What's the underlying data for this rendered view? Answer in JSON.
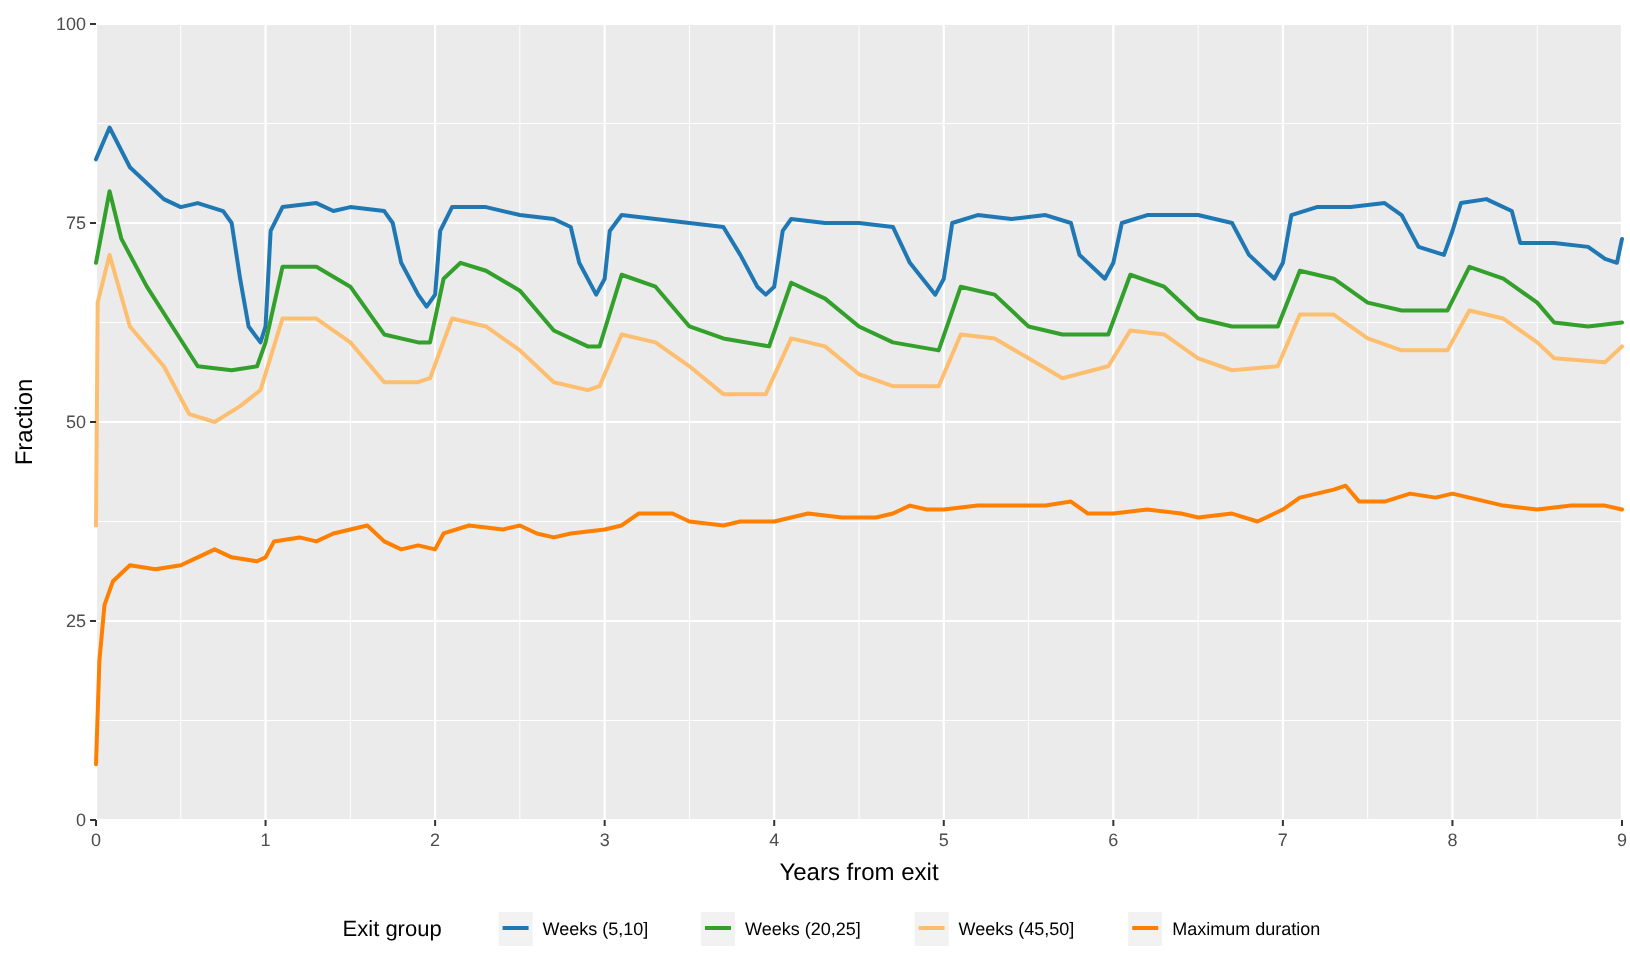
{
  "chart_data": {
    "type": "line",
    "xlabel": "Years from exit",
    "ylabel": "Fraction",
    "legend_title": "Exit group",
    "legend": "bottom",
    "grid": true,
    "xlim": [
      0,
      9
    ],
    "xticks": [
      0,
      1,
      2,
      3,
      4,
      5,
      6,
      7,
      8,
      9
    ],
    "ylim": [
      0,
      100
    ],
    "yticks": [
      0,
      25,
      50,
      75,
      100
    ],
    "series": [
      {
        "name": "Weeks (5,10]",
        "color": "#1f78b4",
        "x": [
          0,
          0.08,
          0.2,
          0.4,
          0.5,
          0.6,
          0.75,
          0.8,
          0.85,
          0.9,
          0.97,
          1.0,
          1.03,
          1.1,
          1.3,
          1.4,
          1.5,
          1.7,
          1.75,
          1.8,
          1.9,
          1.95,
          2.0,
          2.03,
          2.1,
          2.3,
          2.5,
          2.7,
          2.8,
          2.85,
          2.95,
          3.0,
          3.03,
          3.1,
          3.3,
          3.5,
          3.7,
          3.8,
          3.9,
          3.95,
          4.0,
          4.05,
          4.1,
          4.3,
          4.5,
          4.7,
          4.8,
          4.95,
          5.0,
          5.05,
          5.2,
          5.4,
          5.6,
          5.75,
          5.8,
          5.95,
          6.0,
          6.05,
          6.2,
          6.5,
          6.7,
          6.8,
          6.95,
          7.0,
          7.05,
          7.2,
          7.4,
          7.6,
          7.7,
          7.8,
          7.95,
          8.0,
          8.05,
          8.2,
          8.35,
          8.4,
          8.6,
          8.8,
          8.9,
          8.97,
          9.0
        ],
        "values": [
          83,
          87,
          82,
          78,
          77,
          77.5,
          76.5,
          75,
          68,
          62,
          60,
          62,
          74,
          77,
          77.5,
          76.5,
          77,
          76.5,
          75,
          70,
          66,
          64.5,
          66,
          74,
          77,
          77,
          76,
          75.5,
          74.5,
          70,
          66,
          68,
          74,
          76,
          75.5,
          75,
          74.5,
          71,
          67,
          66,
          67,
          74,
          75.5,
          75,
          75,
          74.5,
          70,
          66,
          68,
          75,
          76,
          75.5,
          76,
          75,
          71,
          68,
          70,
          75,
          76,
          76,
          75,
          71,
          68,
          70,
          76,
          77,
          77,
          77.5,
          76,
          72,
          71,
          74,
          77.5,
          78,
          76.5,
          72.5,
          72.5,
          72,
          70.5,
          70,
          73
        ]
      },
      {
        "name": "Weeks (20,25]",
        "color": "#33a02c",
        "x": [
          0,
          0.08,
          0.15,
          0.3,
          0.45,
          0.6,
          0.8,
          0.95,
          1.0,
          1.1,
          1.3,
          1.5,
          1.7,
          1.9,
          1.97,
          2.05,
          2.15,
          2.3,
          2.5,
          2.7,
          2.9,
          2.97,
          3.1,
          3.3,
          3.5,
          3.7,
          3.97,
          4.1,
          4.3,
          4.5,
          4.7,
          4.97,
          5.1,
          5.3,
          5.5,
          5.7,
          5.97,
          6.1,
          6.3,
          6.5,
          6.7,
          6.97,
          7.1,
          7.3,
          7.5,
          7.7,
          7.97,
          8.1,
          8.3,
          8.5,
          8.6,
          8.8,
          9.0
        ],
        "values": [
          70,
          79,
          73,
          67,
          62,
          57,
          56.5,
          57,
          60,
          69.5,
          69.5,
          67,
          61,
          60,
          60,
          68,
          70,
          69,
          66.5,
          61.5,
          59.5,
          59.5,
          68.5,
          67,
          62,
          60.5,
          59.5,
          67.5,
          65.5,
          62,
          60,
          59,
          67,
          66,
          62,
          61,
          61,
          68.5,
          67,
          63,
          62,
          62,
          69,
          68,
          65,
          64,
          64,
          69.5,
          68,
          65,
          62.5,
          62,
          62.5
        ]
      },
      {
        "name": "Weeks (45,50]",
        "color": "#fdbf6f",
        "x": [
          0,
          0.01,
          0.08,
          0.2,
          0.4,
          0.55,
          0.7,
          0.85,
          0.97,
          1.1,
          1.3,
          1.5,
          1.7,
          1.9,
          1.97,
          2.1,
          2.3,
          2.5,
          2.7,
          2.9,
          2.97,
          3.1,
          3.3,
          3.5,
          3.7,
          3.95,
          4.1,
          4.3,
          4.5,
          4.7,
          4.97,
          5.1,
          5.3,
          5.5,
          5.7,
          5.97,
          6.1,
          6.3,
          6.5,
          6.7,
          6.97,
          7.1,
          7.3,
          7.5,
          7.7,
          7.97,
          8.1,
          8.3,
          8.5,
          8.6,
          8.9,
          9.0
        ],
        "values": [
          37,
          65,
          71,
          62,
          57,
          51,
          50,
          52,
          54,
          63,
          63,
          60,
          55,
          55,
          55.5,
          63,
          62,
          59,
          55,
          54,
          54.5,
          61,
          60,
          57,
          53.5,
          53.5,
          60.5,
          59.5,
          56,
          54.5,
          54.5,
          61,
          60.5,
          58,
          55.5,
          57,
          61.5,
          61,
          58,
          56.5,
          57,
          63.5,
          63.5,
          60.5,
          59,
          59,
          64,
          63,
          60,
          58,
          57.5,
          59.5
        ]
      },
      {
        "name": "Maximum duration",
        "color": "#ff7f00",
        "x": [
          0,
          0.02,
          0.05,
          0.1,
          0.2,
          0.35,
          0.5,
          0.6,
          0.7,
          0.8,
          0.95,
          1.0,
          1.05,
          1.2,
          1.3,
          1.4,
          1.5,
          1.6,
          1.7,
          1.8,
          1.9,
          2.0,
          2.05,
          2.2,
          2.4,
          2.5,
          2.6,
          2.7,
          2.8,
          3.0,
          3.1,
          3.2,
          3.4,
          3.5,
          3.7,
          3.8,
          4.0,
          4.2,
          4.4,
          4.6,
          4.7,
          4.8,
          4.9,
          5.0,
          5.2,
          5.4,
          5.6,
          5.75,
          5.85,
          6.0,
          6.2,
          6.4,
          6.5,
          6.7,
          6.85,
          7.0,
          7.1,
          7.3,
          7.37,
          7.45,
          7.6,
          7.75,
          7.9,
          8.0,
          8.1,
          8.3,
          8.5,
          8.7,
          8.9,
          9.0
        ],
        "values": [
          7,
          20,
          27,
          30,
          32,
          31.5,
          32,
          33,
          34,
          33,
          32.5,
          33,
          35,
          35.5,
          35,
          36,
          36.5,
          37,
          35,
          34,
          34.5,
          34,
          36,
          37,
          36.5,
          37,
          36,
          35.5,
          36,
          36.5,
          37,
          38.5,
          38.5,
          37.5,
          37,
          37.5,
          37.5,
          38.5,
          38,
          38,
          38.5,
          39.5,
          39,
          39,
          39.5,
          39.5,
          39.5,
          40,
          38.5,
          38.5,
          39,
          38.5,
          38,
          38.5,
          37.5,
          39,
          40.5,
          41.5,
          42,
          40,
          40,
          41,
          40.5,
          41,
          40.5,
          39.5,
          39,
          39.5,
          39.5,
          39
        ]
      }
    ]
  }
}
